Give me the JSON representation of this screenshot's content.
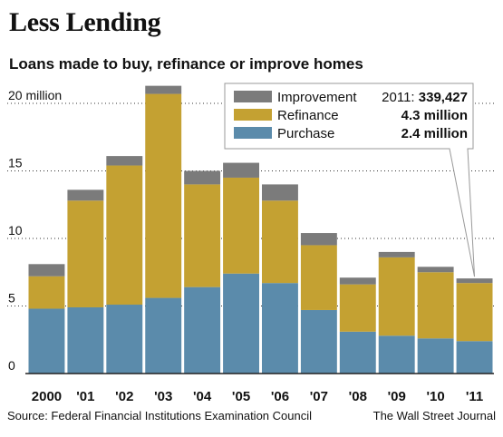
{
  "header": {
    "title": "Less Lending",
    "subtitle": "Loans made to buy, refinance or improve homes"
  },
  "footer": {
    "source": "Source: Federal Financial Institutions Examination Council",
    "publisher": "The Wall Street Journal"
  },
  "colors": {
    "improvement": "#7b7b7b",
    "refinance": "#c4a132",
    "purchase": "#5b8bab",
    "grid": "#333333"
  },
  "legend": {
    "entries": [
      {
        "name": "Improvement",
        "value": "2011: 339,427"
      },
      {
        "name": "Refinance",
        "value": "4.3 million"
      },
      {
        "name": "Purchase",
        "value": "2.4 million"
      }
    ]
  },
  "chart_data": {
    "type": "bar",
    "stacked": true,
    "title": "Less Lending",
    "subtitle": "Loans made to buy, refinance or improve homes",
    "unit": "million loans",
    "categories": [
      "2000",
      "'01",
      "'02",
      "'03",
      "'04",
      "'05",
      "'06",
      "'07",
      "'08",
      "'09",
      "'10",
      "'11"
    ],
    "series": [
      {
        "name": "Purchase",
        "values": [
          4.8,
          4.9,
          5.1,
          5.6,
          6.4,
          7.4,
          6.7,
          4.7,
          3.1,
          2.8,
          2.6,
          2.4
        ]
      },
      {
        "name": "Refinance",
        "values": [
          2.4,
          7.9,
          10.3,
          15.1,
          7.6,
          7.1,
          6.1,
          4.8,
          3.5,
          5.8,
          4.9,
          4.3
        ]
      },
      {
        "name": "Improvement",
        "values": [
          0.9,
          0.8,
          0.7,
          0.6,
          1.0,
          1.1,
          1.2,
          0.9,
          0.5,
          0.4,
          0.4,
          0.34
        ]
      }
    ],
    "y_ticks": [
      {
        "value": 0,
        "label": "0"
      },
      {
        "value": 5,
        "label": "5"
      },
      {
        "value": 10,
        "label": "10"
      },
      {
        "value": 15,
        "label": "15"
      },
      {
        "value": 20,
        "label": "20 million"
      }
    ],
    "ylim": [
      0,
      20
    ],
    "grid": true,
    "legend_position": "top-right",
    "annotations": [
      "2011: 339,427",
      "4.3 million",
      "2.4 million"
    ]
  }
}
